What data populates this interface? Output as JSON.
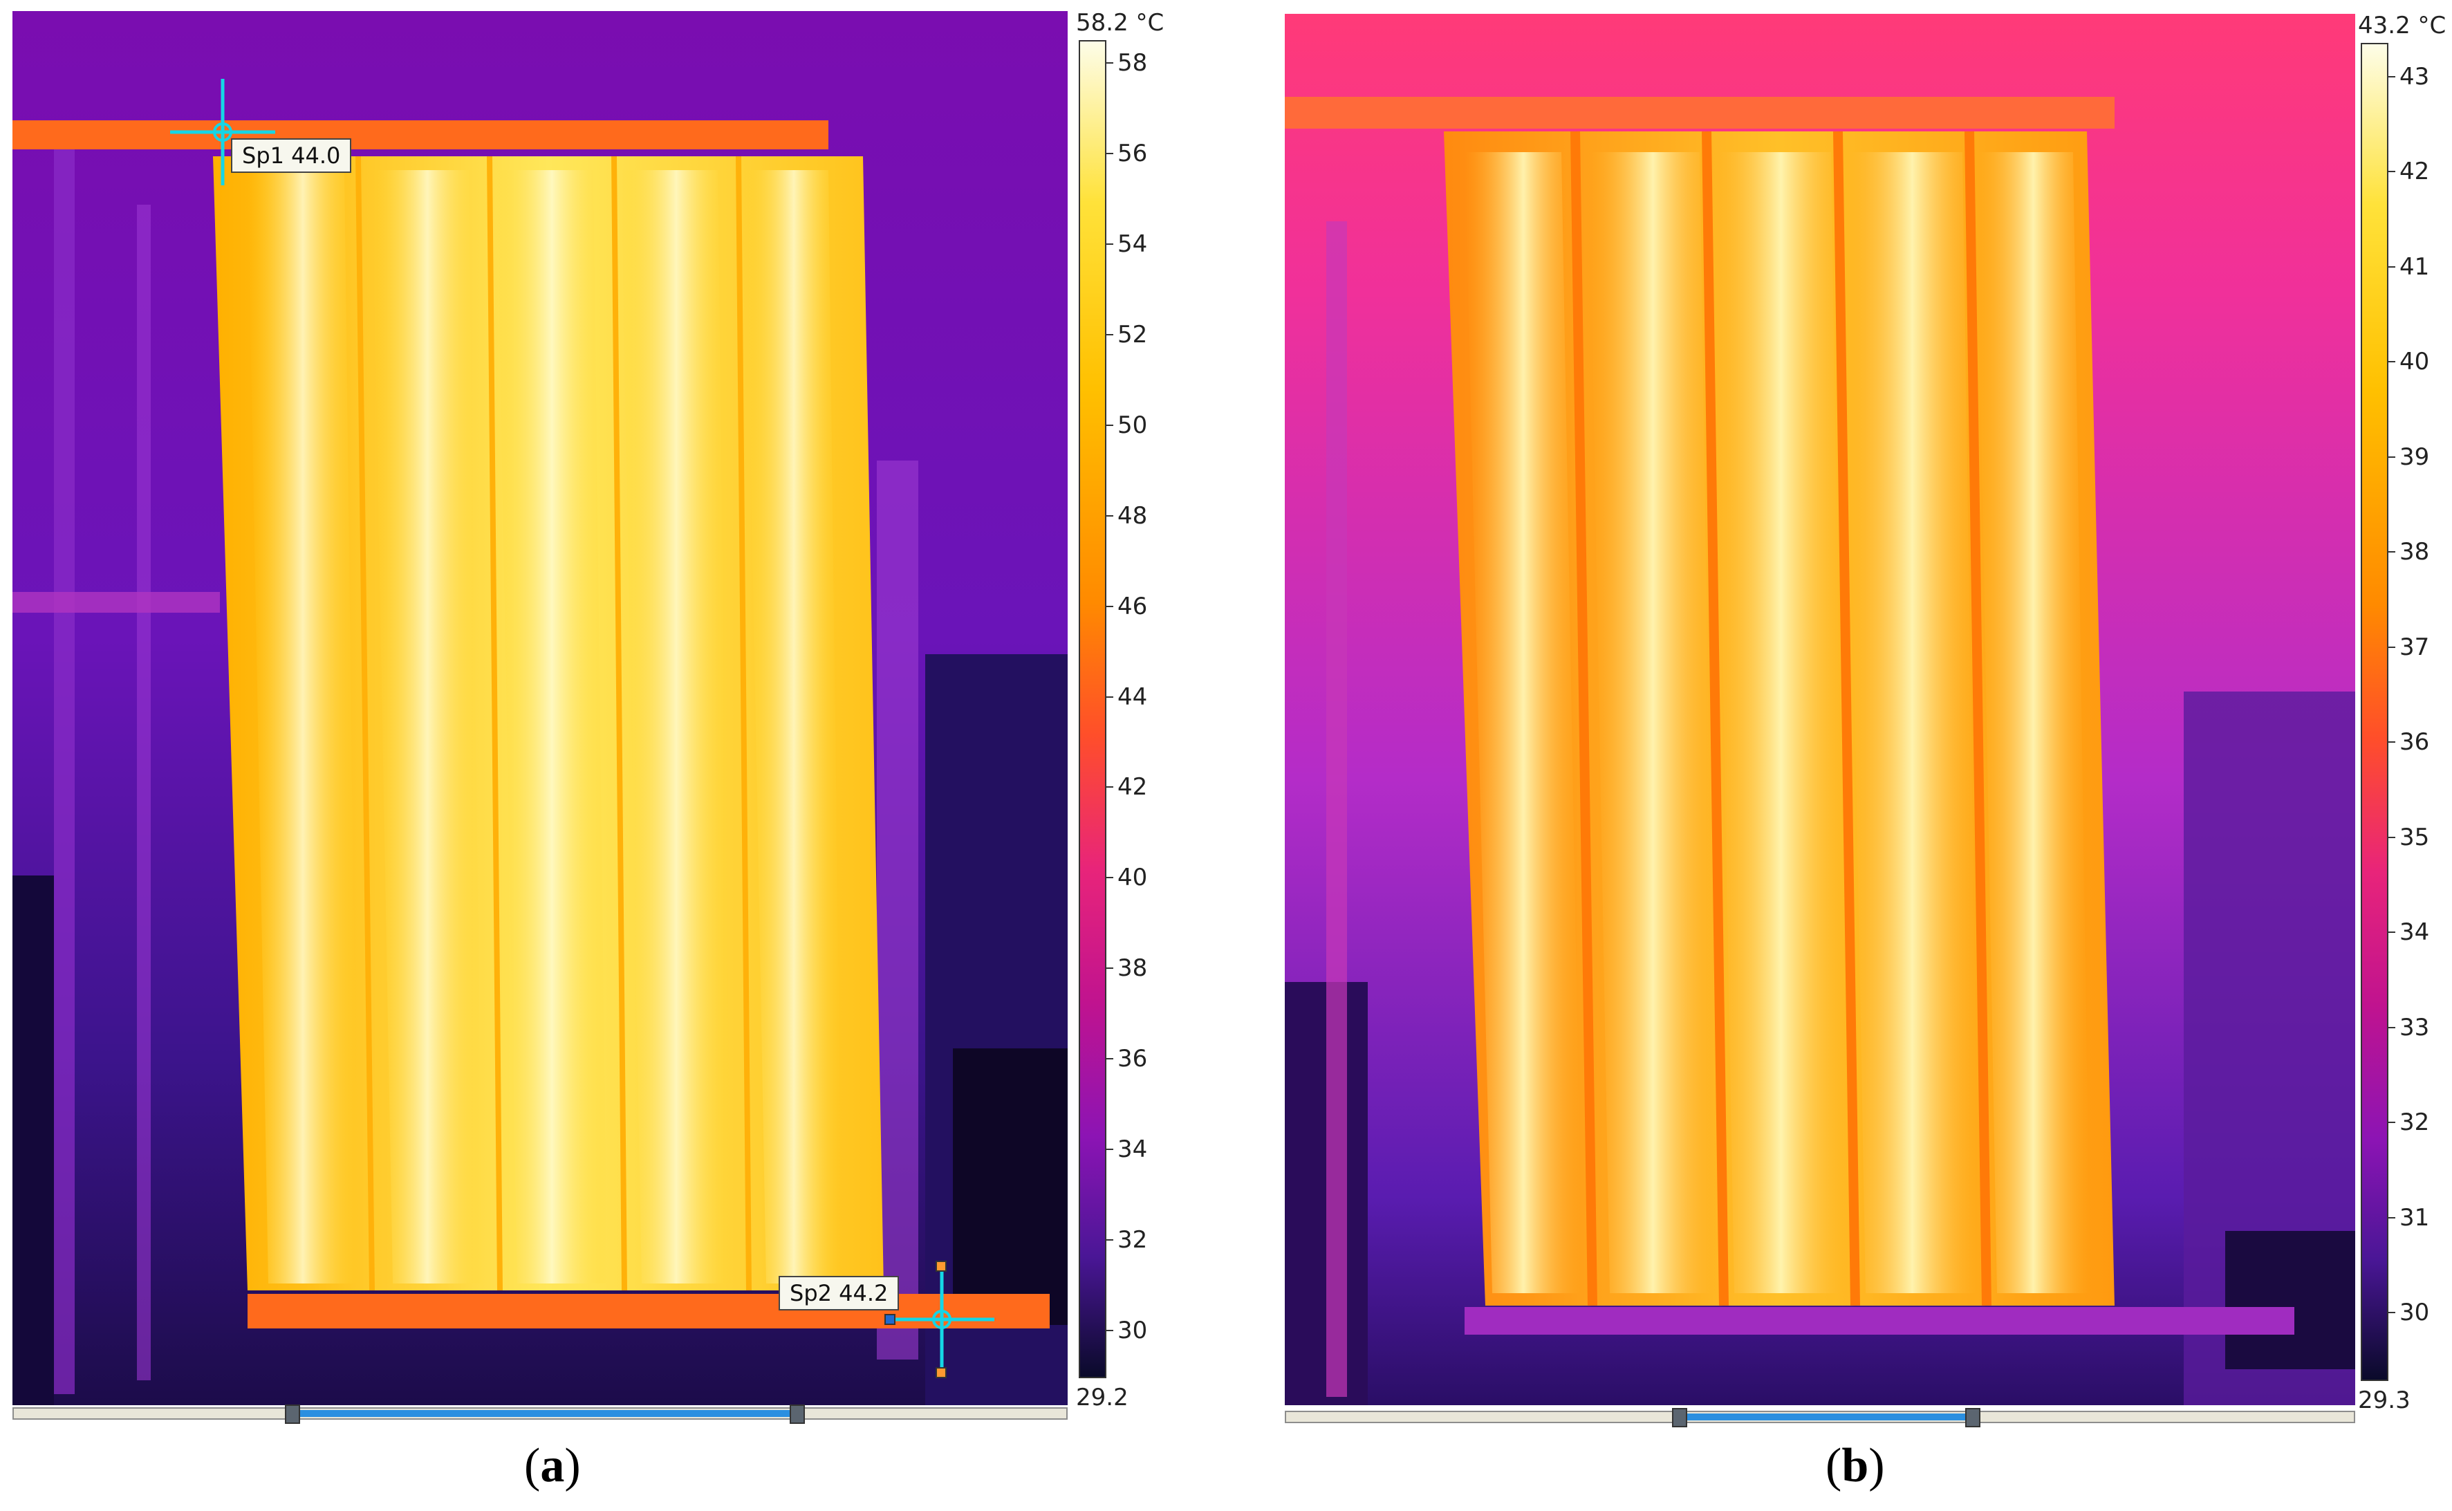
{
  "panel_a": {
    "caption_open": "(",
    "caption_letter": "a",
    "caption_close": ")",
    "scale": {
      "max_label": "58.2 °C",
      "min_label": "29.2",
      "ticks": [
        "58",
        "56",
        "54",
        "52",
        "50",
        "48",
        "46",
        "44",
        "42",
        "40",
        "38",
        "36",
        "34",
        "32",
        "30"
      ]
    },
    "spots": [
      {
        "label": "Sp1 44.0"
      },
      {
        "label": "Sp2 44.2"
      }
    ]
  },
  "panel_b": {
    "caption_open": "(",
    "caption_letter": "b",
    "caption_close": ")",
    "scale": {
      "max_label": "43.2 °C",
      "min_label": "29.3",
      "ticks": [
        "43",
        "42",
        "41",
        "40",
        "39",
        "38",
        "37",
        "36",
        "35",
        "34",
        "33",
        "32",
        "31",
        "30"
      ]
    }
  },
  "colors": {
    "ironbow_top": "#fdfde8",
    "ironbow_yellow": "#ffd21f",
    "ironbow_orange": "#ff7a00",
    "ironbow_magenta": "#d81b8f",
    "ironbow_purple": "#6b1cc0",
    "ironbow_dark": "#0a0a2a",
    "cursor": "#15d6e6",
    "slider_range": "#2b8fe0"
  }
}
